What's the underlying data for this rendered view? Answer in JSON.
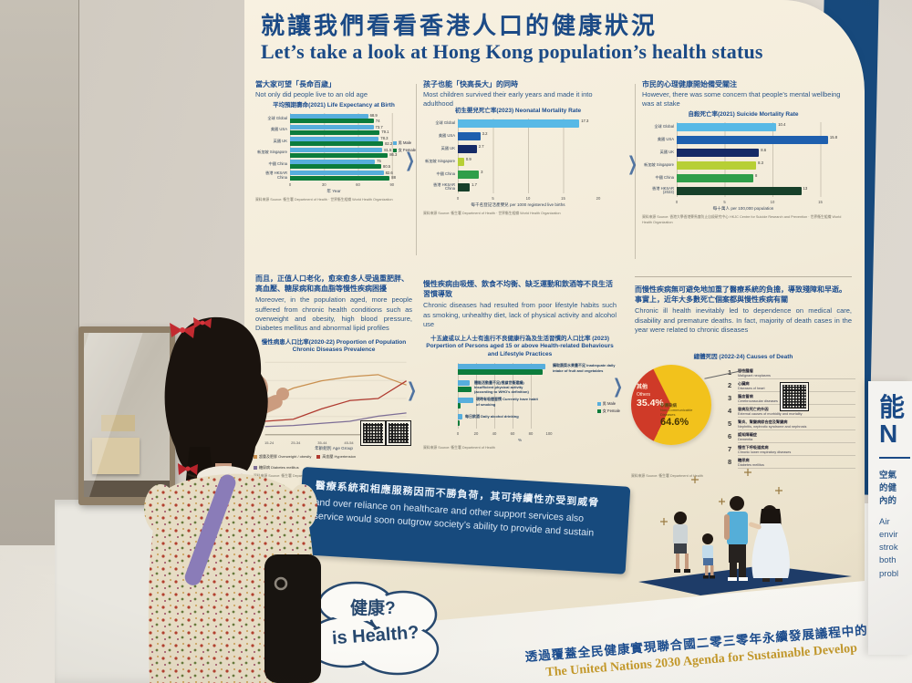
{
  "icons": {
    "chevron": "❯"
  },
  "header": {
    "title_zh": "就讓我們看看香港人口的健康狀況",
    "title_en": "Let’s take a look at Hong Kong population’s health status"
  },
  "panels": {
    "life": {
      "caption_zh": "當大家可望「長命百歲」",
      "caption_en": "Not only did people live to an old age"
    },
    "neonatal": {
      "caption_zh": "孩子也能「快高長大」的同時",
      "caption_en": "Most children survived their early years and made it into adulthood"
    },
    "suicide": {
      "caption_zh": "市民的心理健康開始備受關注",
      "caption_en": "However, there was some concern that people’s mental wellbeing was at stake"
    },
    "chronic": {
      "para_zh": "而且，正值人口老化，愈來愈多人受過重肥胖、高血壓、糖尿病和高血脂等慢性疾病困擾",
      "para_en": "Moreover, in the population aged, more people suffered from chronic health conditions such as overweight and obesity, high blood pressure, Diabetes mellitus and abnormal lipid profiles"
    },
    "lifestyle": {
      "para_zh": "慢性疾病由吸煙、飲食不均衡、缺乏運動和飲酒等不良生活習慣導致",
      "para_en": "Chronic diseases had resulted from poor lifestyle habits such as smoking, unhealthy diet, lack of physical activity and alcohol use"
    },
    "death": {
      "para_zh": "而慢性疾病無可避免地加重了醫療系統的負擔，導致殘障和早逝。事實上，近年大多數死亡個案都與慢性疾病有關",
      "para_en": "Chronic ill health inevitably led to dependence on medical care, disability and premature deaths. In fact, majority of death cases in the year were related to chronic diseases"
    }
  },
  "banner": {
    "zh": "醫療系統和相應服務因而不勝負荷，其可持續性亦受到威脅",
    "en1": "and over reliance on healthcare and other support services also",
    "en2": "service would soon outgrow society’s ability to provide and sustain"
  },
  "cloud": {
    "zh": "健康?",
    "en": "is Health?"
  },
  "footer": {
    "zh": "透過覆蓋全民健康實現聯合國二零三零年永續發展議程中的「不遺落",
    "en": "The United Nations 2030 Agenda for Sustainable Develop"
  },
  "side_panel": {
    "big_zh": "能",
    "big_en": "N",
    "zh_lines": [
      "空氣",
      "的健",
      "內的"
    ],
    "en_lines": [
      "Air",
      "envir",
      "strok",
      "both",
      "probl"
    ]
  },
  "colors": {
    "navy": "#1b4a86",
    "cream": "#f2ebd9",
    "banner": "#174a7d",
    "gold": "#c59a2b"
  },
  "chart_data": [
    {
      "id": "life-expectancy",
      "type": "bar",
      "title": "平均預期壽命(2021) Life Expectancy at Birth",
      "categories": [
        "全球 Global",
        "美國 USA",
        "英國 UK",
        "新加坡 Singapore",
        "中國 China",
        "香港 HKSAR China"
      ],
      "series": [
        {
          "name": "男 Male",
          "color": "#57aedd",
          "values": [
            68.9,
            73.7,
            78.3,
            81.5,
            75,
            82.6
          ]
        },
        {
          "name": "女 Female",
          "color": "#0c7c3c",
          "values": [
            74,
            79.1,
            82.2,
            86.3,
            80.5,
            88
          ]
        }
      ],
      "xmax": 95,
      "xticks": [
        0,
        30,
        60,
        90
      ],
      "xlabel": "年 Year",
      "source": "資料來源 Source: 衞生署 Department of Health · 世界衞生組織 World Health Organization"
    },
    {
      "id": "neonatal",
      "type": "bar",
      "title": "初生嬰兒死亡率(2023) Neonatal Mortality Rate",
      "categories": [
        "全球 Global",
        "美國 USA",
        "英國 UK",
        "新加坡 Singapore",
        "中國 China",
        "香港 HKSAR China"
      ],
      "values": [
        17.3,
        3.2,
        2.7,
        0.9,
        3,
        1.7
      ],
      "colors": [
        "#58b9e6",
        "#1e5fae",
        "#152a66",
        "#b7cf35",
        "#2f9e49",
        "#17402a"
      ],
      "xmax": 20,
      "xticks": [
        0,
        5,
        10,
        15,
        20
      ],
      "xlabel": "每千名登記活產嬰兒 per 1000 registered live births",
      "source": "資料來源 Source: 衞生署 Department of Health · 世界衞生組織 World Health Organization"
    },
    {
      "id": "suicide",
      "type": "bar",
      "title": "自殺死亡率(2021) Suicide Mortality Rate",
      "categories": [
        "全球 Global",
        "美國 USA",
        "英國 UK",
        "新加坡 Singapore",
        "中國 China",
        "香港 HKSAR (2023)"
      ],
      "values": [
        10.4,
        15.8,
        8.6,
        8.3,
        8.0,
        13.0
      ],
      "colors": [
        "#58b9e6",
        "#1e5fae",
        "#152a66",
        "#b7cf35",
        "#2f9e49",
        "#17402a"
      ],
      "xmax": 16,
      "xticks": [
        0,
        5,
        10,
        15
      ],
      "xlabel": "每十萬人 per 100,000 population",
      "source": "資料來源 Source: 香港大學香港賽馬會防止自殺研究中心 HKJC Centre for Suicide Research and Prevention · 世界衞生組織 World Health Organization"
    },
    {
      "id": "chronic-line",
      "type": "line",
      "title": "慢性病患人口比率(2020-22) Proportion of Population Chronic Diseases Prevalence",
      "x": [
        "15-24",
        "25-34",
        "35-44",
        "45-54",
        "55-64",
        "65-84"
      ],
      "ymax": 70,
      "series": [
        {
          "name": "超重及肥胖 Overweight / obesity",
          "color": "#c98f4e",
          "values": [
            33,
            45,
            52,
            56,
            58,
            48
          ]
        },
        {
          "name": "高血壓 Hypertension",
          "color": "#b03a30",
          "values": [
            13,
            15,
            25,
            33,
            35,
            52
          ]
        },
        {
          "name": "糖尿病 Diabetes mellitus",
          "color": "#7d6e96",
          "values": [
            8,
            9,
            11,
            13,
            18,
            21
          ]
        }
      ],
      "xlabel": "年齡組別 Age Group",
      "source": "資料來源 Source: 衞生署 Department of Health"
    },
    {
      "id": "behaviours",
      "type": "bar",
      "title": "十五歲或以上人士有進行不良健康行為及生活習慣的人口比率 (2023) Porpertion of Persons aged 15 or above Health-related Behaviours and Lifestyle Practices",
      "categories": [
        "攝取蔬菜水果量不足 Inadequate daily intake of fruit and vegetables",
        "體能活動量不足(根據世衛建議) Insufficient physical activity (according to WHO's definition)",
        "現時有吸煙習慣 Currently have habit of smoking",
        "每日飲酒 Daily alcohol drinking"
      ],
      "series": [
        {
          "name": "男 Male",
          "color": "#57aedd",
          "values": [
            96,
            13,
            17,
            5
          ]
        },
        {
          "name": "女 Female",
          "color": "#0c7c3c",
          "values": [
            93,
            15,
            3,
            2
          ]
        }
      ],
      "xmax": 100,
      "xticks": [
        0,
        20,
        40,
        60,
        80,
        100
      ],
      "xlabel": "%",
      "source": "資料來源 Source: 衞生署 Department of Health"
    },
    {
      "id": "causes-pie",
      "type": "pie",
      "title": "總體死因 (2022-24) Causes of Death",
      "slices": [
        {
          "label_zh": "其他",
          "label_en": "Others",
          "pct": 35.4,
          "color": "#cf3a28"
        },
        {
          "label_zh": "非傳染病",
          "label_en": "Non-Communicable Diseases",
          "pct": 64.6,
          "color": "#f2c21c"
        }
      ],
      "list": [
        {
          "zh": "惡性腫瘤",
          "en": "Malignant neoplasms"
        },
        {
          "zh": "心臟病",
          "en": "Diseases of heart"
        },
        {
          "zh": "腦血管病",
          "en": "Cerebrovascular diseases"
        },
        {
          "zh": "發病及死亡的外因",
          "en": "External causes of morbidity and mortality"
        },
        {
          "zh": "腎炎、腎變病綜合症及腎變病",
          "en": "Nephritis, nephrotic syndrome and nephrosis"
        },
        {
          "zh": "認知障礙症",
          "en": "Dementia"
        },
        {
          "zh": "慢性下呼吸道疾病",
          "en": "Chronic lower respiratory diseases"
        },
        {
          "zh": "糖尿病",
          "en": "Diabetes mellitus"
        }
      ],
      "source": "資料來源 Source: 衞生署 Department of Health"
    }
  ]
}
